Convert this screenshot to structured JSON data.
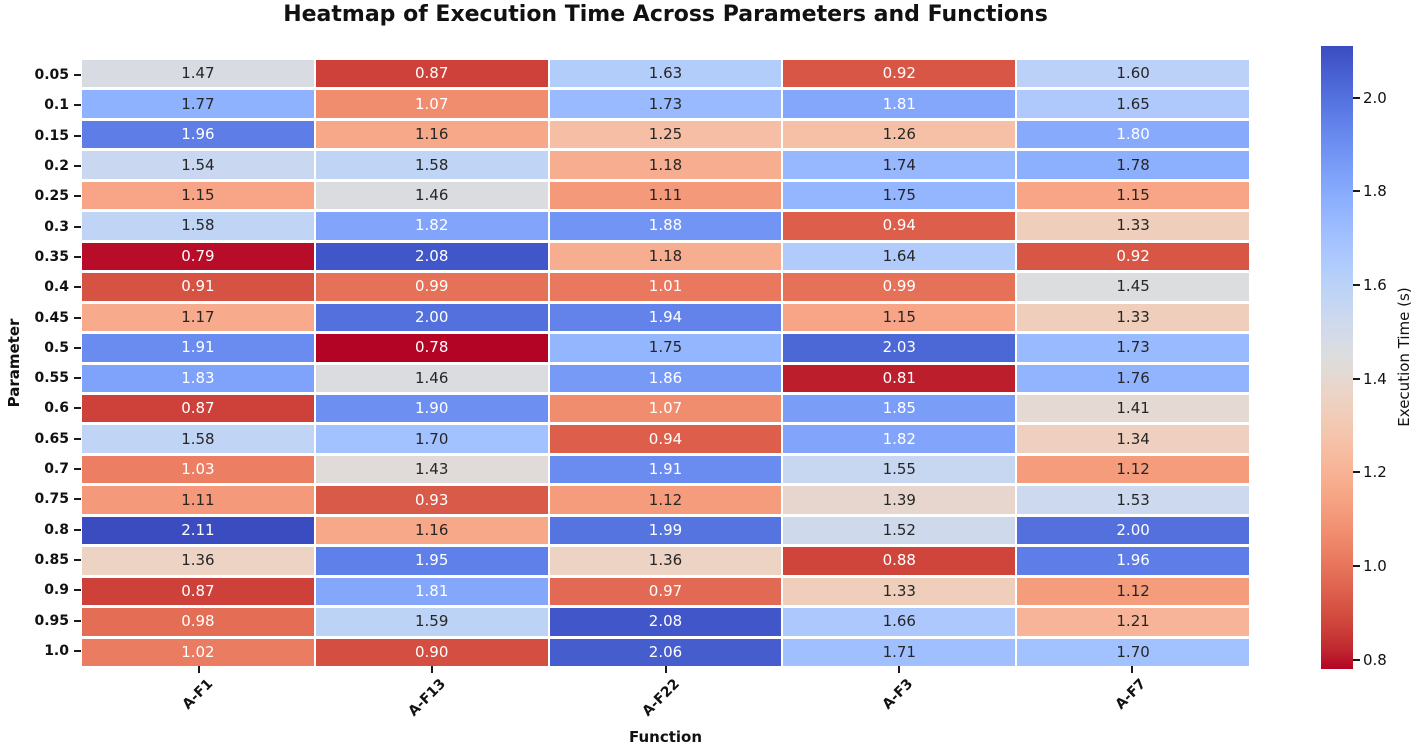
{
  "chart_data": {
    "type": "heatmap",
    "title": "Heatmap of Execution Time Across Parameters and Functions",
    "xlabel": "Function",
    "ylabel": "Parameter",
    "x_categories": [
      "A-F1",
      "A-F13",
      "A-F22",
      "A-F3",
      "A-F7"
    ],
    "y_categories": [
      "0.05",
      "0.1",
      "0.15",
      "0.2",
      "0.25",
      "0.3",
      "0.35",
      "0.4",
      "0.45",
      "0.5",
      "0.55",
      "0.6",
      "0.65",
      "0.7",
      "0.75",
      "0.8",
      "0.85",
      "0.9",
      "0.95",
      "1.0"
    ],
    "values": [
      [
        1.47,
        0.87,
        1.63,
        0.92,
        1.6
      ],
      [
        1.77,
        1.07,
        1.73,
        1.81,
        1.65
      ],
      [
        1.96,
        1.16,
        1.25,
        1.26,
        1.8
      ],
      [
        1.54,
        1.58,
        1.18,
        1.74,
        1.78
      ],
      [
        1.15,
        1.46,
        1.11,
        1.75,
        1.15
      ],
      [
        1.58,
        1.82,
        1.88,
        0.94,
        1.33
      ],
      [
        0.79,
        2.08,
        1.18,
        1.64,
        0.92
      ],
      [
        0.91,
        0.99,
        1.01,
        0.99,
        1.45
      ],
      [
        1.17,
        2.0,
        1.94,
        1.15,
        1.33
      ],
      [
        1.91,
        0.78,
        1.75,
        2.03,
        1.73
      ],
      [
        1.83,
        1.46,
        1.86,
        0.81,
        1.76
      ],
      [
        0.87,
        1.9,
        1.07,
        1.85,
        1.41
      ],
      [
        1.58,
        1.7,
        0.94,
        1.82,
        1.34
      ],
      [
        1.03,
        1.43,
        1.91,
        1.55,
        1.12
      ],
      [
        1.11,
        0.93,
        1.12,
        1.39,
        1.53
      ],
      [
        2.11,
        1.16,
        1.99,
        1.52,
        2.0
      ],
      [
        1.36,
        1.95,
        1.36,
        0.88,
        1.96
      ],
      [
        0.87,
        1.81,
        0.97,
        1.33,
        1.12
      ],
      [
        0.98,
        1.59,
        2.08,
        1.66,
        1.21
      ],
      [
        1.02,
        0.9,
        2.06,
        1.71,
        1.7
      ]
    ],
    "value_format_decimals": 2,
    "vmin": 0.78,
    "vmax": 2.11,
    "grid": false,
    "colorbar": {
      "label": "Execution Time (s)",
      "tick_labels": [
        "2.0",
        "1.8",
        "1.6",
        "1.4",
        "1.2",
        "1.0",
        "0.8"
      ],
      "tick_values": [
        2.0,
        1.8,
        1.6,
        1.4,
        1.2,
        1.0,
        0.8
      ],
      "position": "right"
    },
    "colormap": {
      "name": "coolwarm",
      "reversed": true,
      "low_color": "#b40426",
      "mid_color": "#dddddd",
      "high_color": "#3b4cc0",
      "anchors_blue_to_red": [
        [
          59,
          76,
          192
        ],
        [
          68,
          90,
          204
        ],
        [
          77,
          104,
          215
        ],
        [
          87,
          117,
          225
        ],
        [
          98,
          130,
          234
        ],
        [
          108,
          142,
          241
        ],
        [
          119,
          154,
          247
        ],
        [
          130,
          165,
          251
        ],
        [
          141,
          176,
          254
        ],
        [
          152,
          185,
          255
        ],
        [
          163,
          194,
          255
        ],
        [
          174,
          201,
          253
        ],
        [
          184,
          208,
          249
        ],
        [
          194,
          213,
          244
        ],
        [
          204,
          217,
          238
        ],
        [
          213,
          219,
          230
        ],
        [
          221,
          221,
          221
        ],
        [
          229,
          216,
          209
        ],
        [
          236,
          211,
          197
        ],
        [
          241,
          204,
          185
        ],
        [
          245,
          196,
          173
        ],
        [
          247,
          187,
          160
        ],
        [
          247,
          177,
          148
        ],
        [
          247,
          166,
          135
        ],
        [
          244,
          154,
          123
        ],
        [
          241,
          141,
          111
        ],
        [
          236,
          127,
          99
        ],
        [
          229,
          112,
          88
        ],
        [
          222,
          96,
          77
        ],
        [
          213,
          80,
          66
        ],
        [
          203,
          62,
          56
        ],
        [
          192,
          40,
          47
        ],
        [
          180,
          4,
          38
        ]
      ]
    },
    "annotation_colors": {
      "dark_text": "#262626",
      "light_text": "#ffffff",
      "cell_divider": "#ffffff"
    }
  }
}
